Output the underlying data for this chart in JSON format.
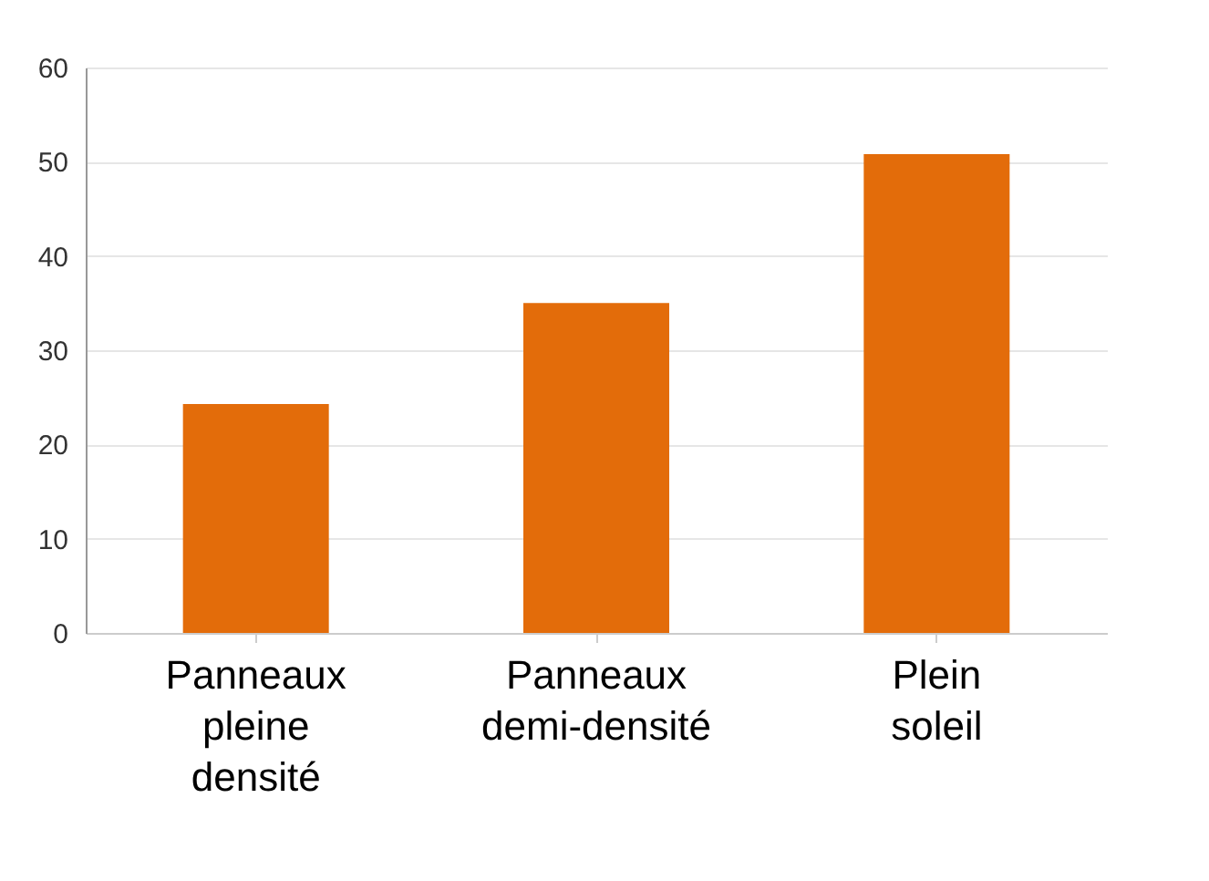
{
  "chart_data": {
    "type": "bar",
    "categories": [
      "Panneaux pleine densité",
      "Panneaux demi-densité",
      "Plein soleil"
    ],
    "values": [
      24.3,
      35,
      50.8
    ],
    "color": "#e36c0a",
    "ylim": [
      0,
      60
    ],
    "yticks": [
      0,
      10,
      20,
      30,
      40,
      50,
      60
    ],
    "grid": "y"
  }
}
